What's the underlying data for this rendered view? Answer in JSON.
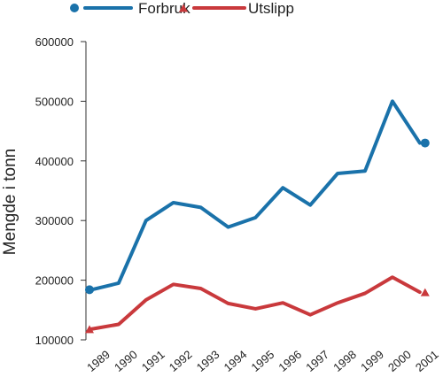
{
  "chart_data": {
    "type": "line",
    "title": "",
    "xlabel": "",
    "ylabel": "Mengde i tonn",
    "categories": [
      "1989",
      "1990",
      "1991",
      "1992",
      "1993",
      "1994",
      "1995",
      "1996",
      "1997",
      "1998",
      "1999",
      "2000",
      "2001"
    ],
    "y_ticks": [
      "100000",
      "200000",
      "300000",
      "400000",
      "500000",
      "600000"
    ],
    "ylim": [
      100000,
      600000
    ],
    "grid": false,
    "legend_position": "top-left",
    "series": [
      {
        "name": "Forbruk",
        "color": "#1a72aa",
        "marker": "circle",
        "values": [
          184000,
          195000,
          300000,
          330000,
          322000,
          289000,
          305000,
          355000,
          326000,
          379000,
          383000,
          500000,
          430000
        ]
      },
      {
        "name": "Utslipp",
        "color": "#c9393c",
        "marker": "triangle",
        "values": [
          118000,
          126000,
          167000,
          193000,
          186000,
          161000,
          152000,
          162000,
          142000,
          162000,
          178000,
          205000,
          180000
        ]
      }
    ]
  }
}
